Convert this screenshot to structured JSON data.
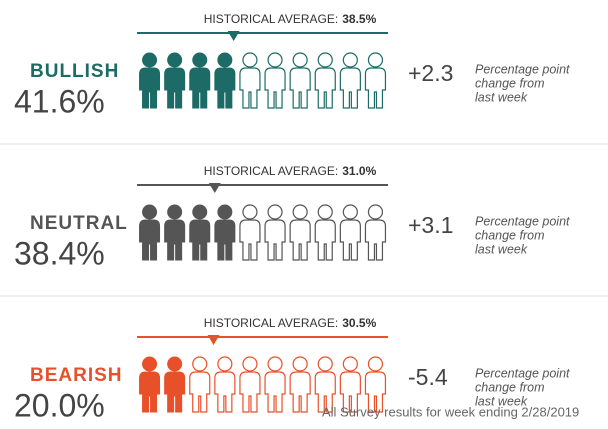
{
  "sections": [
    {
      "name": "BULLISH",
      "value": "41.6%",
      "color": "#1c6b66",
      "historical_label": "HISTORICAL AVERAGE:",
      "historical_average": {
        "value": 38.5,
        "label": "38.5%"
      },
      "figures_filled": 4,
      "figures_total": 10,
      "change": "+2.3",
      "change_note": [
        "Percentage point",
        "change from",
        "last week"
      ]
    },
    {
      "name": "NEUTRAL",
      "value": "38.4%",
      "color": "#555555",
      "historical_label": "HISTORICAL AVERAGE:",
      "historical_average": {
        "value": 31.0,
        "label": "31.0%"
      },
      "figures_filled": 4,
      "figures_total": 10,
      "change": "+3.1",
      "change_note": [
        "Percentage point",
        "change from",
        "last week"
      ]
    },
    {
      "name": "BEARISH",
      "value": "20.0%",
      "color": "#e8502a",
      "historical_label": "HISTORICAL AVERAGE:",
      "historical_average": {
        "value": 30.5,
        "label": "30.5%"
      },
      "figures_filled": 2,
      "figures_total": 10,
      "change": "-5.4",
      "change_note": [
        "Percentage point",
        "change from",
        "last week"
      ]
    }
  ],
  "scale_range": [
    0,
    100
  ],
  "footer": "All Survey results for week ending 2/28/2019"
}
